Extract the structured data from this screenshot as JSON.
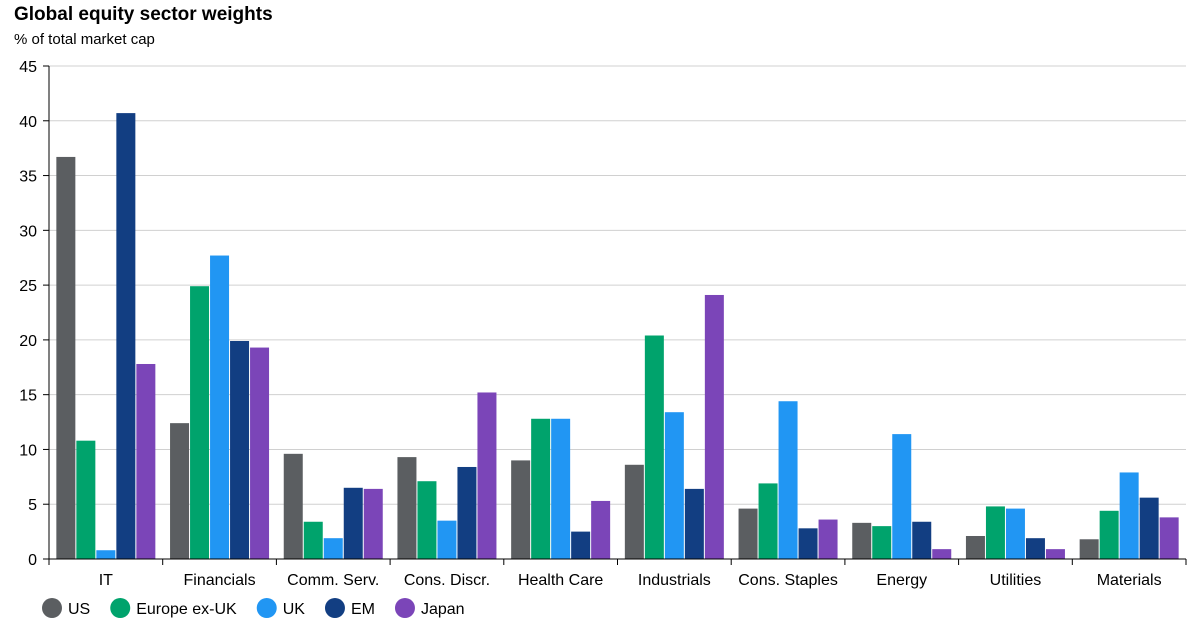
{
  "title": "Global equity sector weights",
  "subtitle": "% of total market cap",
  "chart_data": {
    "type": "bar",
    "title": "Global equity sector weights",
    "subtitle": "% of total market cap",
    "categories": [
      "IT",
      "Financials",
      "Comm. Serv.",
      "Cons. Discr.",
      "Health Care",
      "Industrials",
      "Cons. Staples",
      "Energy",
      "Utilities",
      "Materials"
    ],
    "series": [
      {
        "name": "US",
        "color": "#5b5e61",
        "values": [
          36.7,
          12.4,
          9.6,
          9.3,
          9.0,
          8.6,
          4.6,
          3.3,
          2.1,
          1.8
        ]
      },
      {
        "name": "Europe ex-UK",
        "color": "#00a36c",
        "values": [
          10.8,
          24.9,
          3.4,
          7.1,
          12.8,
          20.4,
          6.9,
          3.0,
          4.8,
          4.4
        ]
      },
      {
        "name": "UK",
        "color": "#2196f3",
        "values": [
          0.8,
          27.7,
          1.9,
          3.5,
          12.8,
          13.4,
          14.4,
          11.4,
          4.6,
          7.9
        ]
      },
      {
        "name": "EM",
        "color": "#123e82",
        "values": [
          40.7,
          19.9,
          6.5,
          8.4,
          2.5,
          6.4,
          2.8,
          3.4,
          1.9,
          5.6
        ]
      },
      {
        "name": "Japan",
        "color": "#7b45b8",
        "values": [
          17.8,
          19.3,
          6.4,
          15.2,
          5.3,
          24.1,
          3.6,
          0.9,
          0.9,
          3.8
        ]
      }
    ],
    "xlabel": "",
    "ylabel": "",
    "ylim": [
      0,
      45
    ],
    "yticks": [
      0,
      5,
      10,
      15,
      20,
      25,
      30,
      35,
      40,
      45
    ],
    "grid": true,
    "legend_position": "bottom-left"
  }
}
